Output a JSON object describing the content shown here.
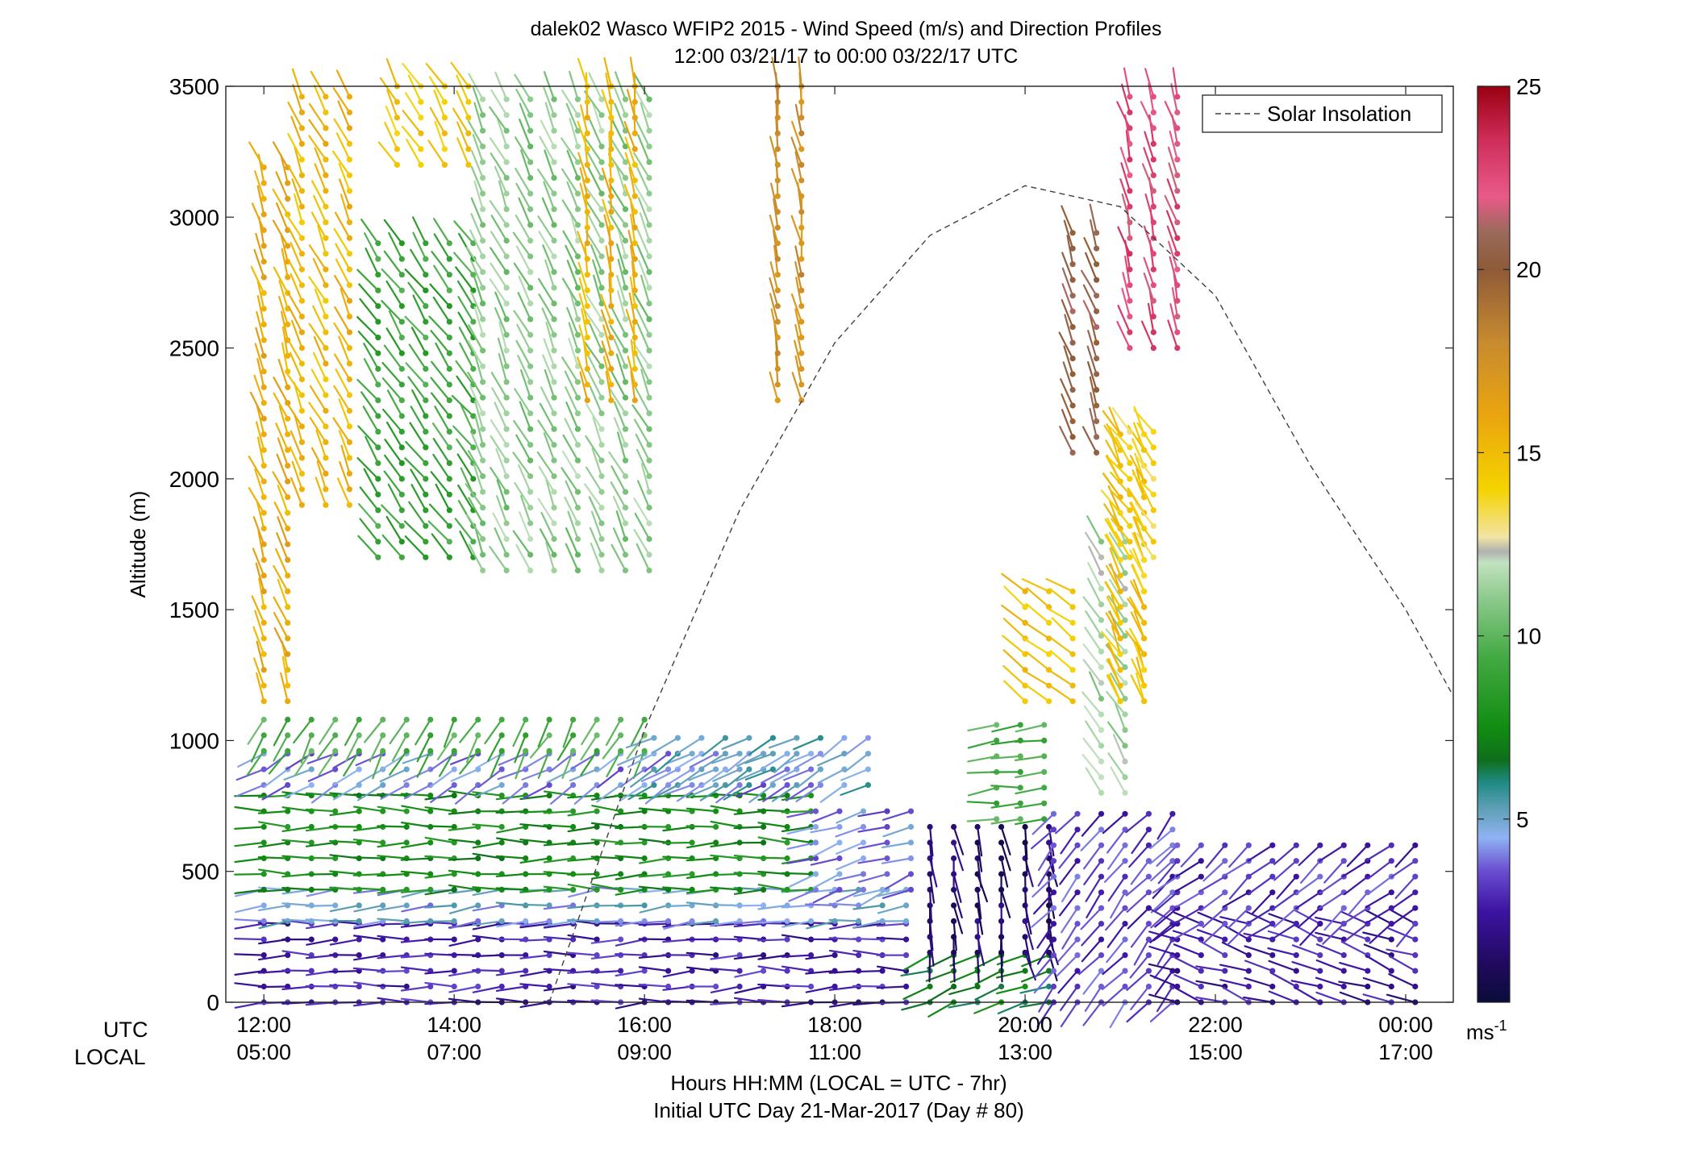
{
  "chart_data": {
    "type": "wind_barb_profile",
    "title": "dalek02 Wasco WFIP2 2015 - Wind Speed (m/s) and Direction Profiles",
    "subtitle": "12:00 03/21/17 to 00:00 03/22/17  UTC",
    "ylabel": "Altitude (m)",
    "ylim": [
      0,
      3500
    ],
    "yticks": [
      0,
      500,
      1000,
      1500,
      2000,
      2500,
      3000,
      3500
    ],
    "xlabel": "Hours HH:MM  (LOCAL = UTC - 7hr)",
    "xlabel2": "Initial UTC Day 21-Mar-2017 (Day # 80)",
    "xrange_hours": [
      11.6,
      24.5
    ],
    "row_labels": {
      "utc": "UTC",
      "local": "LOCAL"
    },
    "xticks_hours": [
      12,
      14,
      16,
      18,
      20,
      22,
      24
    ],
    "xticks_utc": [
      "12:00",
      "14:00",
      "16:00",
      "18:00",
      "20:00",
      "22:00",
      "00:00"
    ],
    "xticks_local": [
      "05:00",
      "07:00",
      "09:00",
      "11:00",
      "13:00",
      "15:00",
      "17:00"
    ],
    "legend": {
      "label": "Solar Insolation",
      "position": "top-right"
    },
    "solar_insolation": {
      "style": "dashed",
      "peak_hour": 20.2,
      "peak_altitude": 3120,
      "points": [
        [
          15.0,
          0
        ],
        [
          16.0,
          1040
        ],
        [
          17.0,
          1880
        ],
        [
          18.0,
          2520
        ],
        [
          19.0,
          2930
        ],
        [
          20.0,
          3120
        ],
        [
          21.0,
          3040
        ],
        [
          22.0,
          2700
        ],
        [
          23.0,
          2050
        ],
        [
          24.0,
          1500
        ],
        [
          24.5,
          1170
        ]
      ]
    },
    "colorbar": {
      "min": 0,
      "max": 25,
      "ticks": [
        5,
        10,
        15,
        20,
        25
      ],
      "unit": "ms",
      "unit_exponent": "-1",
      "stops": [
        {
          "v": 0,
          "color": "#0b0c3a"
        },
        {
          "v": 1,
          "color": "#1f0a5c"
        },
        {
          "v": 2.5,
          "color": "#3d13a3"
        },
        {
          "v": 3.6,
          "color": "#6a4fd2"
        },
        {
          "v": 4.5,
          "color": "#8fb3f2"
        },
        {
          "v": 5.3,
          "color": "#5d9fb5"
        },
        {
          "v": 6.0,
          "color": "#1f8a84"
        },
        {
          "v": 6.6,
          "color": "#0f6e1c"
        },
        {
          "v": 7.5,
          "color": "#118d11"
        },
        {
          "v": 9.5,
          "color": "#46ab46"
        },
        {
          "v": 11.0,
          "color": "#8cc98c"
        },
        {
          "v": 12.0,
          "color": "#c2e2bf"
        },
        {
          "v": 12.3,
          "color": "#b0b0b0"
        },
        {
          "v": 12.7,
          "color": "#f2e4a4"
        },
        {
          "v": 14.0,
          "color": "#f5d300"
        },
        {
          "v": 16.0,
          "color": "#eaa50e"
        },
        {
          "v": 18.0,
          "color": "#c88b2f"
        },
        {
          "v": 20.0,
          "color": "#8e5a38"
        },
        {
          "v": 21.0,
          "color": "#9a6a5a"
        },
        {
          "v": 22.0,
          "color": "#e85a8a"
        },
        {
          "v": 23.5,
          "color": "#cf2f5a"
        },
        {
          "v": 25.0,
          "color": "#9a0012"
        }
      ]
    },
    "regimes": [
      {
        "t0": 12.0,
        "t1": 18.8,
        "z0": 0,
        "z1": 310,
        "speed": 2.6,
        "dir": 272
      },
      {
        "t0": 12.0,
        "t1": 18.8,
        "z0": 310,
        "z1": 430,
        "speed": 4.7,
        "dir": 275
      },
      {
        "t0": 12.0,
        "t1": 17.8,
        "z0": 430,
        "z1": 830,
        "speed": 7.6,
        "dir": 270
      },
      {
        "t0": 12.0,
        "t1": 17.8,
        "z0": 830,
        "z1": 960,
        "speed": 4.2,
        "dir": 300
      },
      {
        "t0": 12.0,
        "t1": 16.1,
        "z0": 960,
        "z1": 1130,
        "speed": 9.5,
        "dir": 330
      },
      {
        "t0": 17.8,
        "t1": 18.8,
        "z0": 430,
        "z1": 760,
        "speed": 4.1,
        "dir": 290
      },
      {
        "t0": 16.1,
        "t1": 18.4,
        "z0": 830,
        "z1": 1060,
        "speed": 5.0,
        "dir": 300
      },
      {
        "t0": 19.0,
        "t1": 20.3,
        "z0": 0,
        "z1": 190,
        "speed": 7.0,
        "dir": 290
      },
      {
        "t0": 19.0,
        "t1": 20.3,
        "z0": 190,
        "z1": 700,
        "speed": 1.2,
        "dir": 10
      },
      {
        "t0": 19.7,
        "t1": 20.3,
        "z0": 700,
        "z1": 1100,
        "speed": 9.5,
        "dir": 275
      },
      {
        "t0": 20.3,
        "t1": 21.6,
        "z0": 0,
        "z1": 720,
        "speed": 3.2,
        "dir": 320
      },
      {
        "t0": 21.6,
        "t1": 24.1,
        "z0": 0,
        "z1": 300,
        "speed": 2.4,
        "dir": 250
      },
      {
        "t0": 21.6,
        "t1": 24.1,
        "z0": 300,
        "z1": 630,
        "speed": 3.0,
        "dir": 310
      },
      {
        "t0": 12.0,
        "t1": 12.4,
        "z0": 1150,
        "z1": 3200,
        "speed": 15.8,
        "dir": 200
      },
      {
        "t0": 12.4,
        "t1": 13.0,
        "z0": 1900,
        "z1": 3500,
        "speed": 15.2,
        "dir": 205
      },
      {
        "t0": 13.2,
        "t1": 14.3,
        "z0": 1700,
        "z1": 2900,
        "speed": 9.0,
        "dir": 215
      },
      {
        "t0": 13.4,
        "t1": 14.3,
        "z0": 3200,
        "z1": 3500,
        "speed": 14.5,
        "dir": 210
      },
      {
        "t0": 14.3,
        "t1": 16.1,
        "z0": 1650,
        "z1": 3500,
        "speed": 11.0,
        "dir": 205
      },
      {
        "t0": 15.4,
        "t1": 16.0,
        "z0": 2300,
        "z1": 3500,
        "speed": 15.5,
        "dir": 190
      },
      {
        "t0": 17.4,
        "t1": 17.8,
        "z0": 2300,
        "z1": 3500,
        "speed": 17.5,
        "dir": 190
      },
      {
        "t0": 20.0,
        "t1": 20.5,
        "z0": 1150,
        "z1": 1600,
        "speed": 14.8,
        "dir": 235
      },
      {
        "t0": 20.5,
        "t1": 20.8,
        "z0": 2100,
        "z1": 2950,
        "speed": 20.5,
        "dir": 200
      },
      {
        "t0": 20.8,
        "t1": 21.2,
        "z0": 800,
        "z1": 1800,
        "speed": 11.5,
        "dir": 210
      },
      {
        "t0": 21.0,
        "t1": 21.3,
        "z0": 1150,
        "z1": 2200,
        "speed": 15.0,
        "dir": 205
      },
      {
        "t0": 21.0,
        "t1": 21.3,
        "z0": 1150,
        "z1": 2200,
        "speed": 14.5,
        "dir": 210
      },
      {
        "t0": 21.1,
        "t1": 21.6,
        "z0": 2500,
        "z1": 3500,
        "speed": 22.5,
        "dir": 195
      },
      {
        "t0": 21.1,
        "t1": 21.5,
        "z0": 1700,
        "z1": 2200,
        "speed": 14.0,
        "dir": 215
      }
    ]
  }
}
